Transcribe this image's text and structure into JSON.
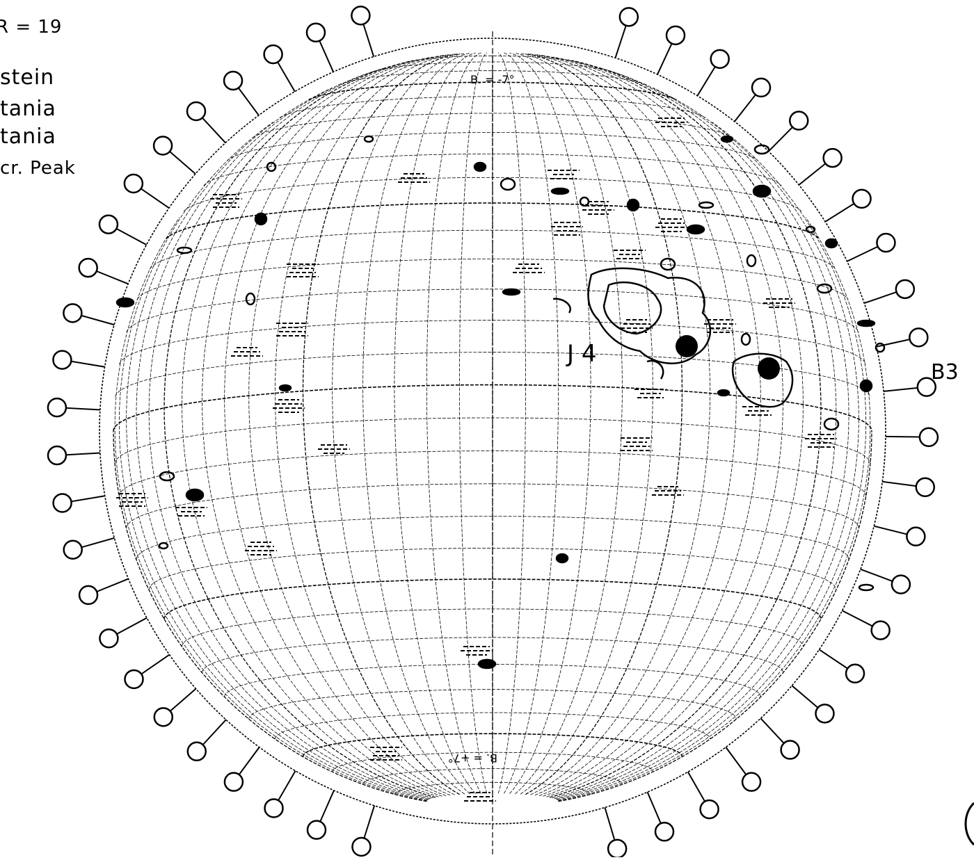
{
  "header": {
    "r_label": "R = 19"
  },
  "legend": {
    "lines": [
      "stein",
      "tania",
      "tania",
      "cr. Peak"
    ]
  },
  "disk": {
    "top_label": "B. = -7°",
    "bottom_label": "B. = +7°"
  },
  "markers": {
    "region_label_1": "J 4",
    "region_label_2": "B3"
  },
  "colors": {
    "ink": "#000000",
    "paper": "#ffffff"
  }
}
